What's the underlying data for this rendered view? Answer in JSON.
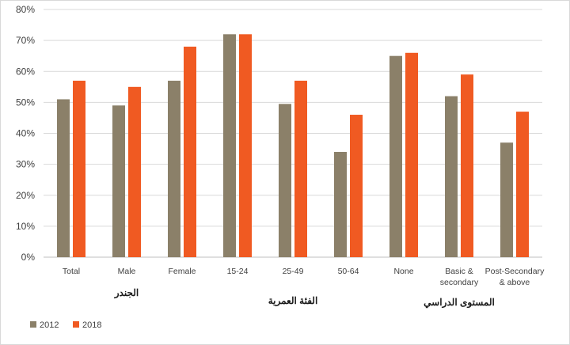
{
  "chart_data": {
    "type": "bar",
    "title": "",
    "xlabel": "",
    "ylabel": "",
    "ylim": [
      0,
      0.8
    ],
    "y_ticks": [
      "0%",
      "10%",
      "20%",
      "30%",
      "40%",
      "50%",
      "60%",
      "70%",
      "80%"
    ],
    "grid": true,
    "legend_position": "bottom-left",
    "categories": [
      [
        "Total"
      ],
      [
        "Male"
      ],
      [
        "Female"
      ],
      [
        "15-24"
      ],
      [
        "25-49"
      ],
      [
        "50-64"
      ],
      [
        "None"
      ],
      [
        "Basic &",
        "secondary"
      ],
      [
        "Post-Secondary",
        "& above"
      ]
    ],
    "groups": [
      {
        "label": "الجندر",
        "span": [
          0,
          2
        ]
      },
      {
        "label": "الفئة العمرية",
        "span": [
          3,
          5
        ]
      },
      {
        "label": "المستوى الدراسي",
        "span": [
          6,
          8
        ]
      }
    ],
    "series": [
      {
        "name": "2012",
        "color": "#8b8069",
        "values": [
          0.51,
          0.49,
          0.57,
          0.72,
          0.495,
          0.34,
          0.65,
          0.52,
          0.37
        ]
      },
      {
        "name": "2018",
        "color": "#f05a22",
        "values": [
          0.57,
          0.55,
          0.68,
          0.72,
          0.57,
          0.46,
          0.66,
          0.59,
          0.47
        ]
      }
    ]
  }
}
